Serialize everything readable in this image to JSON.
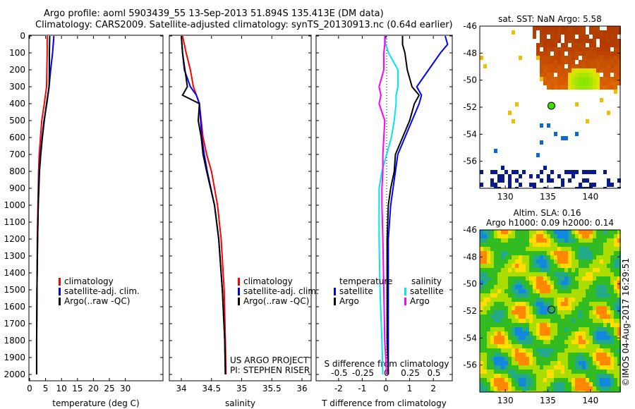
{
  "title_line1": "Argo profile: aoml 5903439_55 13-Sep-2013 51.894S 135.413E (DM data)",
  "title_line2": "Climatology: CARS2009. Satellite-adjusted climatology: synTS_20130913.nc (0.64d earlier)",
  "credit": "©IMOS 04-Aug-2017 16:29:51",
  "project_line1": "US ARGO PROJECT",
  "project_line2": "PI: STEPHEN RISER",
  "colors": {
    "climatology": "#ff0000",
    "satellite": "#0000ff",
    "argo": "#000000",
    "sal_sat": "#00e5ee",
    "sal_argo": "#ff00ff"
  },
  "chart_data": [
    {
      "type": "line",
      "name": "temperature",
      "xlabel": "temperature (deg C)",
      "xlim": [
        -1,
        31
      ],
      "ylim": [
        0,
        2050
      ],
      "xticks": [
        "0",
        "5",
        "10",
        "15",
        "20",
        "25",
        "30"
      ],
      "xtick_values": [
        0,
        5,
        10,
        15,
        20,
        25,
        30
      ],
      "yticks": [
        "0",
        "100",
        "200",
        "300",
        "400",
        "500",
        "600",
        "700",
        "800",
        "900",
        "1000",
        "1100",
        "1200",
        "1300",
        "1400",
        "1500",
        "1600",
        "1700",
        "1800",
        "1900",
        "2000"
      ],
      "legend": [
        "climatology",
        "satellite-adj. clim.",
        "Argo(..raw -QC)"
      ],
      "depth": [
        0,
        100,
        200,
        300,
        400,
        500,
        600,
        700,
        800,
        1000,
        1200,
        1500,
        1800,
        2000
      ],
      "series": [
        {
          "name": "climatology",
          "values": [
            5.5,
            5.5,
            5.4,
            5.3,
            4.6,
            3.8,
            3.4,
            3.0,
            2.8,
            2.6,
            2.4,
            2.3,
            2.2,
            2.2
          ]
        },
        {
          "name": "satellite-adj. clim.",
          "values": [
            7.6,
            7.2,
            6.6,
            6.1,
            5.4,
            4.5,
            3.9,
            3.4,
            3.0,
            2.7,
            2.5,
            2.3,
            2.2,
            2.2
          ]
        },
        {
          "name": "Argo(..raw -QC)",
          "values": [
            6.3,
            6.2,
            6.2,
            6.1,
            5.3,
            4.6,
            4.0,
            3.5,
            3.1,
            2.7,
            2.5,
            2.3,
            2.2,
            2.2
          ]
        }
      ]
    },
    {
      "type": "line",
      "name": "salinity",
      "xlabel": "salinity",
      "xlim": [
        33.8,
        36.1
      ],
      "ylim": [
        0,
        2050
      ],
      "xticks": [
        "34",
        "34.5",
        "35",
        "35.5",
        "36"
      ],
      "xtick_values": [
        34,
        34.5,
        35,
        35.5,
        36
      ],
      "legend": [
        "climatology",
        "satellite-adj. clim.",
        "Argo(..raw -QC)"
      ],
      "depth": [
        0,
        100,
        200,
        300,
        350,
        400,
        500,
        600,
        700,
        800,
        1000,
        1200,
        1500,
        1800,
        2000
      ],
      "series": [
        {
          "name": "climatology",
          "values": [
            34.02,
            34.08,
            34.15,
            34.2,
            34.25,
            34.3,
            34.33,
            34.36,
            34.42,
            34.5,
            34.6,
            34.66,
            34.71,
            34.73,
            34.74
          ]
        },
        {
          "name": "satellite-adj. clim.",
          "values": [
            34.0,
            34.02,
            34.05,
            34.15,
            34.25,
            34.3,
            34.32,
            34.34,
            34.38,
            34.43,
            34.55,
            34.62,
            34.68,
            34.72,
            34.73
          ]
        },
        {
          "name": "Argo(..raw -QC)",
          "values": [
            34.0,
            34.02,
            34.06,
            34.1,
            34.02,
            34.3,
            34.28,
            34.33,
            34.36,
            34.42,
            34.55,
            34.62,
            34.68,
            34.72,
            34.73
          ]
        }
      ]
    },
    {
      "type": "line",
      "name": "differences",
      "xlabel": "T difference from climatology",
      "xlabel2": "S difference from climatology",
      "xlim": [
        -2.9,
        2.9
      ],
      "xlim_s": [
        -0.725,
        0.725
      ],
      "ylim": [
        0,
        2050
      ],
      "xticks": [
        "-2",
        "-1",
        "0",
        "1",
        "2"
      ],
      "xtick_values": [
        -2,
        -1,
        0,
        1,
        2
      ],
      "xticks_s": [
        "-0.5",
        "-0.25",
        "0",
        "0.25",
        "0.5"
      ],
      "xtick_values_s": [
        -0.5,
        -0.25,
        0,
        0.25,
        0.5
      ],
      "legend_t_title": "temperature",
      "legend_s_title": "salinity",
      "legend_t": [
        "satellite",
        "Argo"
      ],
      "legend_s": [
        "satellite",
        "Argo"
      ],
      "depth": [
        0,
        50,
        100,
        200,
        300,
        350,
        400,
        500,
        600,
        700,
        800,
        900,
        1000,
        1200,
        1500,
        1800,
        2000
      ],
      "series": [
        {
          "name": "T satellite",
          "axis": "T",
          "values": [
            2.5,
            2.6,
            2.3,
            1.8,
            1.3,
            1.5,
            1.4,
            1.1,
            0.8,
            0.5,
            0.4,
            0.3,
            0.2,
            0.1,
            0.1,
            0.1,
            0.1
          ]
        },
        {
          "name": "T Argo",
          "axis": "T",
          "values": [
            0.7,
            0.7,
            0.8,
            0.9,
            1.1,
            1.4,
            1.2,
            1.0,
            0.7,
            0.4,
            0.35,
            0.2,
            0.1,
            0.05,
            0.05,
            0.05,
            0.1
          ]
        },
        {
          "name": "S satellite",
          "axis": "S",
          "values": [
            -0.02,
            -0.01,
            0.02,
            0.12,
            0.12,
            0.1,
            0.1,
            0.08,
            0.05,
            0.0,
            -0.05,
            -0.08,
            -0.08,
            -0.08,
            -0.07,
            -0.05,
            -0.04
          ]
        },
        {
          "name": "S Argo",
          "axis": "S",
          "values": [
            -0.02,
            -0.02,
            -0.03,
            -0.03,
            -0.08,
            -0.06,
            -0.08,
            -0.02,
            -0.03,
            -0.04,
            -0.04,
            -0.05,
            -0.05,
            -0.04,
            -0.03,
            -0.02,
            0.0
          ]
        }
      ]
    },
    {
      "type": "heatmap",
      "name": "sst_map",
      "title": "sat. SST: NaN Argo: 5.58",
      "xticks": [
        "130",
        "135",
        "140"
      ],
      "yticks": [
        "-46",
        "-48",
        "-50",
        "-52",
        "-54",
        "-56"
      ],
      "xlim": [
        127,
        143.5
      ],
      "ylim": [
        -58,
        -46
      ],
      "marker": [
        135.413,
        -51.894
      ]
    },
    {
      "type": "heatmap",
      "name": "sla_map",
      "title_line1": "Altim. SLA: 0.16",
      "title_line2": "Argo h1000: 0.09 h2000: 0.14",
      "xticks": [
        "130",
        "135",
        "140"
      ],
      "yticks": [
        "-46",
        "-48",
        "-50",
        "-52",
        "-54",
        "-56"
      ],
      "xlim": [
        127,
        143.5
      ],
      "ylim": [
        -58,
        -46
      ],
      "marker": [
        135.413,
        -51.894
      ]
    }
  ]
}
